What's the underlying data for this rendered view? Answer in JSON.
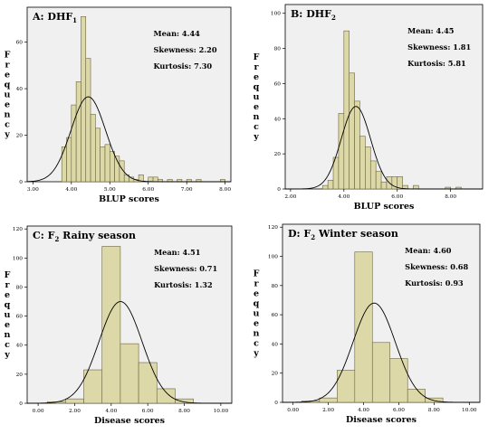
{
  "styles": {
    "plot_bg": "#f0f0f0",
    "bar_fill": "#dcd8a8",
    "bar_stroke": "#6b6540",
    "curve": "#000000"
  },
  "chart_data": [
    {
      "type": "bar",
      "title_main": "A: DHF",
      "title_sub": "1",
      "title_rest": "",
      "stats": {
        "mean": "Mean: 4.44",
        "skewness": "Skewness: 2.20",
        "kurtosis": "Kurtosis: 7.30"
      },
      "ylabel": "Frequency",
      "xlabel": "BLUP scores",
      "xlim": [
        2.85,
        8.15
      ],
      "ylim": [
        0,
        75
      ],
      "xticks": [
        3,
        4,
        5,
        6,
        7,
        8
      ],
      "xtick_labels": [
        "3.00",
        "4.00",
        "5.00",
        "6.00",
        "7.00",
        "8.00"
      ],
      "yticks": [
        0,
        20,
        40,
        60
      ],
      "ytick_labels": [
        "0",
        "20",
        "40",
        "60"
      ],
      "bin_width": 0.125,
      "bins": [
        {
          "x0": 3.75,
          "value": 15
        },
        {
          "x0": 3.875,
          "value": 19
        },
        {
          "x0": 4.0,
          "value": 33
        },
        {
          "x0": 4.125,
          "value": 43
        },
        {
          "x0": 4.25,
          "value": 71
        },
        {
          "x0": 4.375,
          "value": 53
        },
        {
          "x0": 4.5,
          "value": 29
        },
        {
          "x0": 4.625,
          "value": 23
        },
        {
          "x0": 4.75,
          "value": 15
        },
        {
          "x0": 4.875,
          "value": 16
        },
        {
          "x0": 5.0,
          "value": 13
        },
        {
          "x0": 5.125,
          "value": 11
        },
        {
          "x0": 5.25,
          "value": 9
        },
        {
          "x0": 5.375,
          "value": 3
        },
        {
          "x0": 5.5,
          "value": 2
        },
        {
          "x0": 5.625,
          "value": 1
        },
        {
          "x0": 5.75,
          "value": 3
        },
        {
          "x0": 6.0,
          "value": 2
        },
        {
          "x0": 6.125,
          "value": 2
        },
        {
          "x0": 6.25,
          "value": 1
        },
        {
          "x0": 6.5,
          "value": 1
        },
        {
          "x0": 6.75,
          "value": 1
        },
        {
          "x0": 7.0,
          "value": 1
        },
        {
          "x0": 7.25,
          "value": 1
        },
        {
          "x0": 7.875,
          "value": 1
        }
      ],
      "curve": {
        "mean": 4.44,
        "sd": 0.45,
        "peak": 36.5
      }
    },
    {
      "type": "bar",
      "title_main": "B: DHF",
      "title_sub": "2",
      "title_rest": "",
      "stats": {
        "mean": "Mean: 4.45",
        "skewness": "Skewness: 1.81",
        "kurtosis": "Kurtosis: 5.81"
      },
      "ylabel": "Frequency",
      "xlabel": "BLUP scores",
      "xlim": [
        1.8,
        9.2
      ],
      "ylim": [
        0,
        105
      ],
      "xticks": [
        2,
        4,
        6,
        8
      ],
      "xtick_labels": [
        "2.00",
        "4.00",
        "6.00",
        "8.00"
      ],
      "yticks": [
        0,
        20,
        40,
        60,
        80,
        100
      ],
      "ytick_labels": [
        "0",
        "20",
        "40",
        "60",
        "80",
        "100"
      ],
      "bin_width": 0.2,
      "bins": [
        {
          "x0": 3.2,
          "value": 2
        },
        {
          "x0": 3.4,
          "value": 5
        },
        {
          "x0": 3.6,
          "value": 18
        },
        {
          "x0": 3.8,
          "value": 43
        },
        {
          "x0": 4.0,
          "value": 90
        },
        {
          "x0": 4.2,
          "value": 66
        },
        {
          "x0": 4.4,
          "value": 50
        },
        {
          "x0": 4.6,
          "value": 30
        },
        {
          "x0": 4.8,
          "value": 24
        },
        {
          "x0": 5.0,
          "value": 16
        },
        {
          "x0": 5.2,
          "value": 10
        },
        {
          "x0": 5.4,
          "value": 4
        },
        {
          "x0": 5.6,
          "value": 7
        },
        {
          "x0": 5.8,
          "value": 7
        },
        {
          "x0": 6.0,
          "value": 7
        },
        {
          "x0": 6.2,
          "value": 2
        },
        {
          "x0": 6.6,
          "value": 2
        },
        {
          "x0": 7.8,
          "value": 1
        },
        {
          "x0": 8.2,
          "value": 1
        }
      ],
      "curve": {
        "mean": 4.45,
        "sd": 0.55,
        "peak": 47
      }
    },
    {
      "type": "bar",
      "title_main": "C: F",
      "title_sub": "2",
      "title_rest": " Rainy season",
      "stats": {
        "mean": "Mean: 4.51",
        "skewness": "Skewness: 0.71",
        "kurtosis": "Kurtosis: 1.32"
      },
      "ylabel": "Frequency",
      "xlabel": "Disease scores",
      "xlim": [
        -0.6,
        10.6
      ],
      "ylim": [
        0,
        122
      ],
      "xticks": [
        0,
        2,
        4,
        6,
        8,
        10
      ],
      "xtick_labels": [
        "0.00",
        "2.00",
        "4.00",
        "6.00",
        "8.00",
        "10.00"
      ],
      "yticks": [
        0,
        20,
        40,
        60,
        80,
        100,
        120
      ],
      "ytick_labels": [
        "0",
        "20",
        "40",
        "60",
        "80",
        "100",
        "120"
      ],
      "bin_width": 1,
      "bins": [
        {
          "x0": 0.5,
          "value": 1
        },
        {
          "x0": 1.5,
          "value": 3
        },
        {
          "x0": 2.5,
          "value": 23
        },
        {
          "x0": 3.5,
          "value": 108
        },
        {
          "x0": 4.5,
          "value": 41
        },
        {
          "x0": 5.5,
          "value": 28
        },
        {
          "x0": 6.5,
          "value": 10
        },
        {
          "x0": 7.5,
          "value": 3
        }
      ],
      "curve": {
        "mean": 4.51,
        "sd": 1.18,
        "peak": 70
      }
    },
    {
      "type": "bar",
      "title_main": "D: F",
      "title_sub": "2",
      "title_rest": " Winter season",
      "stats": {
        "mean": "Mean: 4.60",
        "skewness": "Skewness: 0.68",
        "kurtosis": "Kurtosis: 0.93"
      },
      "ylabel": "Frequency",
      "xlabel": "Disease scores",
      "xlim": [
        -0.6,
        10.6
      ],
      "ylim": [
        0,
        122
      ],
      "xticks": [
        0,
        2,
        4,
        6,
        8,
        10
      ],
      "xtick_labels": [
        "0.00",
        "2.00",
        "4.00",
        "6.00",
        "8.00",
        "10.00"
      ],
      "yticks": [
        0,
        20,
        40,
        60,
        80,
        100,
        120
      ],
      "ytick_labels": [
        "0",
        "20",
        "40",
        "60",
        "80",
        "100",
        "120"
      ],
      "bin_width": 1,
      "bins": [
        {
          "x0": 0.5,
          "value": 1
        },
        {
          "x0": 1.5,
          "value": 3
        },
        {
          "x0": 2.5,
          "value": 22
        },
        {
          "x0": 3.5,
          "value": 103
        },
        {
          "x0": 4.5,
          "value": 41
        },
        {
          "x0": 5.5,
          "value": 30
        },
        {
          "x0": 6.5,
          "value": 9
        },
        {
          "x0": 7.5,
          "value": 3
        }
      ],
      "curve": {
        "mean": 4.6,
        "sd": 1.2,
        "peak": 68
      }
    }
  ]
}
